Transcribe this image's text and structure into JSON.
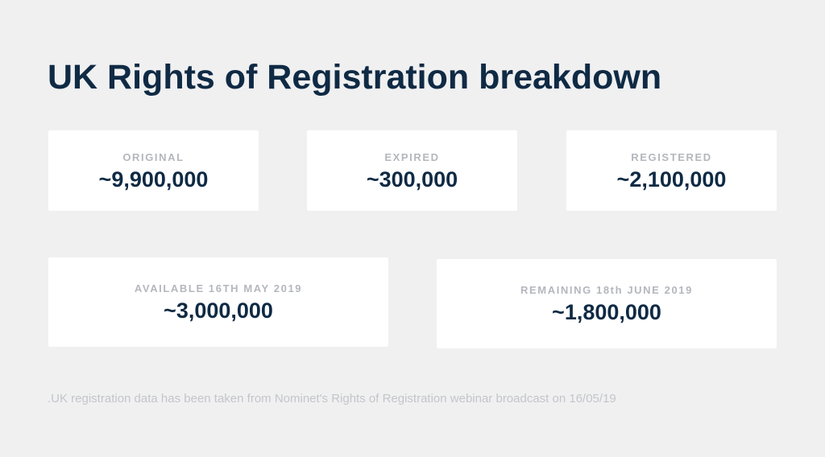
{
  "title": "UK Rights of Registration breakdown",
  "cards": [
    {
      "label": "ORIGINAL",
      "value": "~9,900,000"
    },
    {
      "label": "EXPIRED",
      "value": "~300,000"
    },
    {
      "label": "REGISTERED",
      "value": "~2,100,000"
    },
    {
      "label": "AVAILABLE 16TH MAY 2019",
      "value": "~3,000,000"
    },
    {
      "label": "REMAINING 18th JUNE 2019",
      "value": "~1,800,000"
    }
  ],
  "footnote": ".UK registration data has been taken from Nominet's Rights of Registration webinar broadcast on 16/05/19",
  "colors": {
    "background": "#f0f0f1",
    "card": "#ffffff",
    "title": "#0f2a44",
    "label": "#b4b7bd",
    "footnote": "#c3c5ca"
  }
}
